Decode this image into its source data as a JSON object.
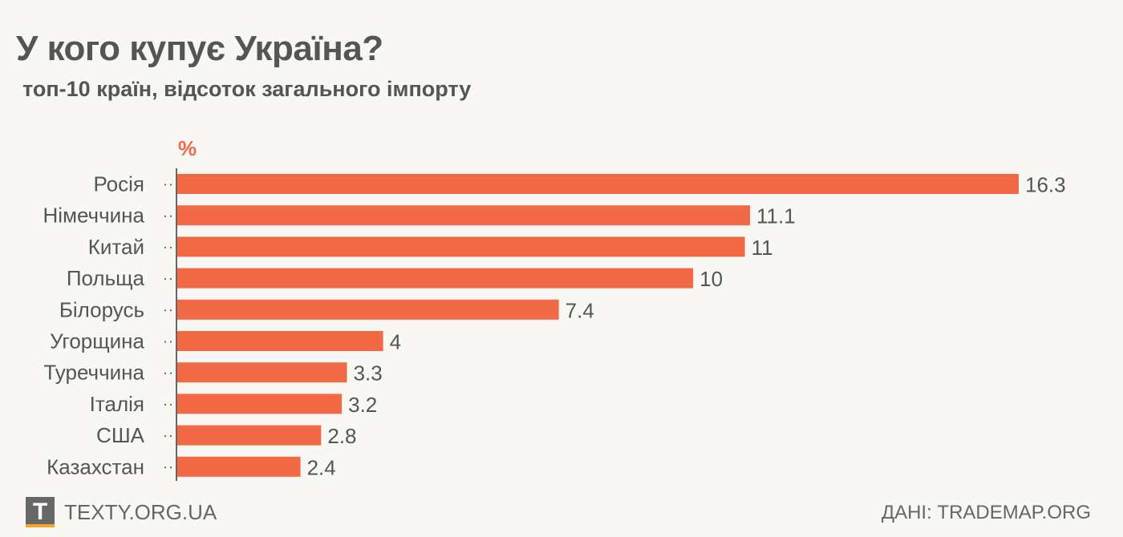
{
  "title": "У кого купує Україна?",
  "subtitle": "топ-10 країн, відсоток загального імпорту",
  "footer": {
    "logo_letter": "T",
    "site": "TEXTY.ORG.UA",
    "source": "ДАНІ: TRADEMAP.ORG"
  },
  "chart_data": {
    "type": "bar",
    "orientation": "horizontal",
    "title": "У кого купує Україна?",
    "unit_label": "%",
    "categories": [
      "Росія",
      "Німеччина",
      "Китай",
      "Польща",
      "Білорусь",
      "Угорщина",
      "Туреччина",
      "Італія",
      "США",
      "Казахстан"
    ],
    "values": [
      16.3,
      11.1,
      11,
      10,
      7.4,
      4,
      3.3,
      3.2,
      2.8,
      2.4
    ],
    "labels": [
      "16.3",
      "11.1",
      "11",
      "10",
      "7.4",
      "4",
      "3.3",
      "3.2",
      "2.8",
      "2.4"
    ],
    "xlim": [
      0,
      16.3
    ],
    "color": "#f26a45"
  }
}
